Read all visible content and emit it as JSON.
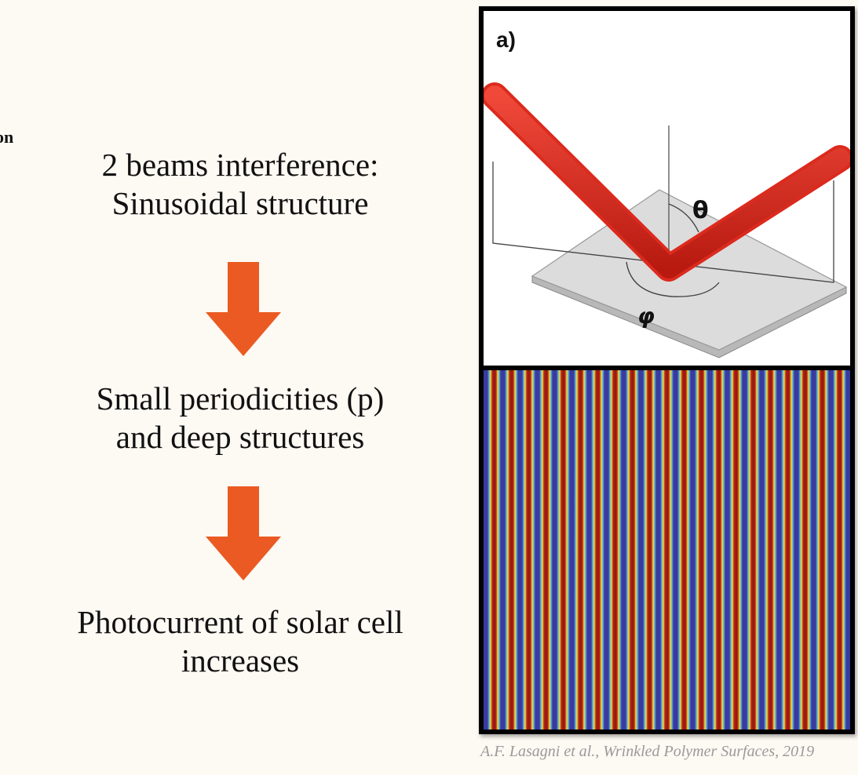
{
  "left_fragment": "on",
  "steps": [
    {
      "lines": [
        "2 beams interference:",
        "Sinusoidal structure"
      ]
    },
    {
      "lines": [
        "Small periodicities (p)",
        "and deep structures"
      ]
    },
    {
      "lines": [
        "Photocurrent of solar cell",
        "increases"
      ]
    }
  ],
  "arrow_color": "#eb5a22",
  "figure": {
    "panel_label": "a)",
    "theta_label": "θ",
    "phi_label": "φ",
    "beam_color": "#dc2a1e",
    "substrate_color": "#dcdcdc",
    "fringe_colors": [
      "#3a3aa0",
      "#e8e43a",
      "#c0241a",
      "#8a1a10"
    ]
  },
  "citation": "A.F. Lasagni et al., Wrinkled Polymer Surfaces, 2019"
}
